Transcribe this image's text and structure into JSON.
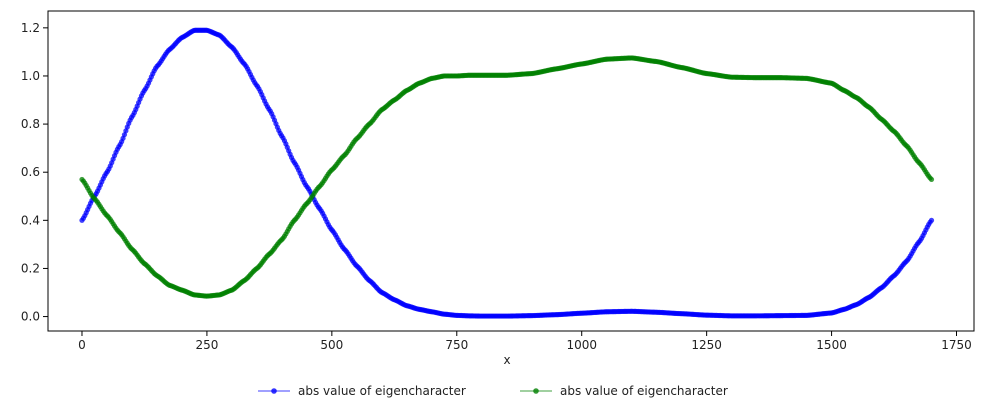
{
  "chart_data": {
    "type": "scatter",
    "title": "",
    "xlabel": "x",
    "ylabel": "",
    "xlim": [
      -68,
      1785
    ],
    "ylim": [
      -0.06,
      1.27
    ],
    "x_ticks": [
      0,
      250,
      500,
      750,
      1000,
      1250,
      1500,
      1750
    ],
    "x_tick_labels": [
      "0",
      "250",
      "500",
      "750",
      "1000",
      "1250",
      "1500",
      "1750"
    ],
    "y_ticks": [
      0.0,
      0.2,
      0.4,
      0.6,
      0.8,
      1.0,
      1.2
    ],
    "y_tick_labels": [
      "0.0",
      "0.2",
      "0.4",
      "0.6",
      "0.8",
      "1.0",
      "1.2"
    ],
    "grid": false,
    "legend_position": "bottom-center",
    "x_range": [
      0,
      1700
    ],
    "series": [
      {
        "name": "abs value of eigencharacter",
        "color": "#0000ff",
        "x": [
          0,
          25,
          50,
          75,
          100,
          125,
          150,
          175,
          200,
          225,
          250,
          275,
          300,
          325,
          350,
          375,
          400,
          425,
          450,
          475,
          500,
          525,
          550,
          575,
          600,
          625,
          650,
          675,
          700,
          725,
          750,
          775,
          800,
          850,
          900,
          950,
          1000,
          1050,
          1100,
          1150,
          1200,
          1250,
          1300,
          1350,
          1400,
          1450,
          1500,
          1525,
          1550,
          1575,
          1600,
          1625,
          1650,
          1675,
          1700
        ],
        "y": [
          0.4,
          0.5,
          0.6,
          0.71,
          0.83,
          0.94,
          1.04,
          1.11,
          1.16,
          1.19,
          1.19,
          1.17,
          1.12,
          1.05,
          0.96,
          0.86,
          0.75,
          0.64,
          0.54,
          0.45,
          0.36,
          0.28,
          0.21,
          0.15,
          0.1,
          0.07,
          0.045,
          0.03,
          0.02,
          0.01,
          0.005,
          0.003,
          0.002,
          0.002,
          0.004,
          0.008,
          0.014,
          0.02,
          0.022,
          0.018,
          0.012,
          0.006,
          0.003,
          0.003,
          0.004,
          0.005,
          0.015,
          0.03,
          0.05,
          0.08,
          0.12,
          0.17,
          0.23,
          0.31,
          0.4
        ]
      },
      {
        "name": "abs value of eigencharacter",
        "color": "#008000",
        "x": [
          0,
          25,
          50,
          75,
          100,
          125,
          150,
          175,
          200,
          225,
          250,
          275,
          300,
          325,
          350,
          375,
          400,
          425,
          450,
          475,
          500,
          525,
          550,
          575,
          600,
          625,
          650,
          675,
          700,
          725,
          750,
          775,
          800,
          850,
          900,
          950,
          1000,
          1050,
          1100,
          1150,
          1200,
          1250,
          1300,
          1350,
          1400,
          1450,
          1500,
          1525,
          1550,
          1575,
          1600,
          1625,
          1650,
          1675,
          1700
        ],
        "y": [
          0.57,
          0.49,
          0.42,
          0.35,
          0.28,
          0.22,
          0.17,
          0.13,
          0.11,
          0.09,
          0.085,
          0.09,
          0.11,
          0.15,
          0.2,
          0.26,
          0.32,
          0.4,
          0.47,
          0.54,
          0.61,
          0.67,
          0.74,
          0.8,
          0.86,
          0.9,
          0.94,
          0.97,
          0.99,
          1.0,
          1.0,
          1.003,
          1.003,
          1.003,
          1.01,
          1.03,
          1.05,
          1.07,
          1.075,
          1.06,
          1.035,
          1.01,
          0.995,
          0.993,
          0.993,
          0.99,
          0.97,
          0.94,
          0.91,
          0.87,
          0.82,
          0.77,
          0.71,
          0.64,
          0.57
        ]
      }
    ]
  }
}
